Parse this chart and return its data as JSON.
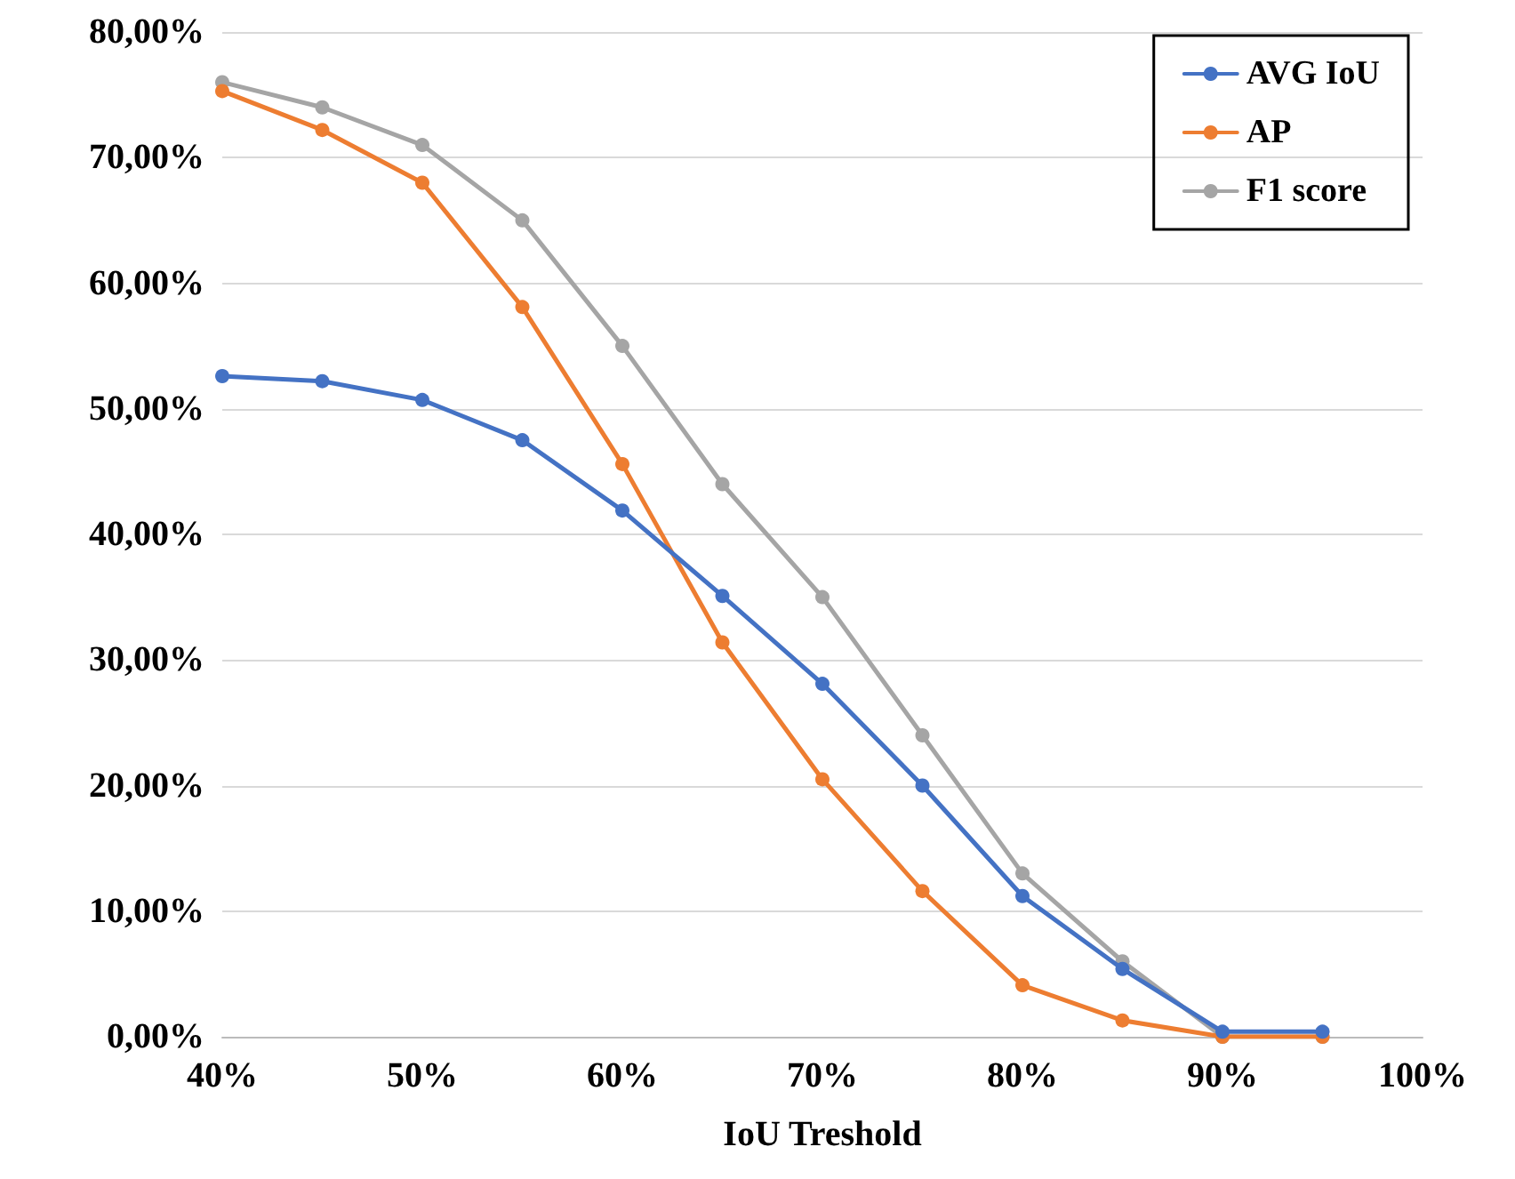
{
  "chart_data": {
    "type": "line",
    "xlabel": "IoU Treshold",
    "x": [
      40,
      45,
      50,
      55,
      60,
      65,
      70,
      75,
      80,
      85,
      90,
      95
    ],
    "series": [
      {
        "name": "AVG IoU",
        "color": "#4472c4",
        "values": [
          52.6,
          52.2,
          50.7,
          47.5,
          41.9,
          35.1,
          28.1,
          20.0,
          11.2,
          5.4,
          0.4,
          0.4
        ]
      },
      {
        "name": "AP",
        "color": "#ed7d31",
        "values": [
          75.3,
          72.2,
          68.0,
          58.1,
          45.6,
          31.4,
          20.5,
          11.6,
          4.1,
          1.3,
          0,
          0
        ]
      },
      {
        "name": "F1 score",
        "color": "#a5a5a5",
        "values": [
          76,
          74,
          71,
          65,
          55,
          44,
          35,
          24,
          13,
          6,
          0,
          0
        ]
      }
    ],
    "xlim": [
      40,
      100
    ],
    "xticks": [
      {
        "value": 40,
        "label": "40%"
      },
      {
        "value": 50,
        "label": "50%"
      },
      {
        "value": 60,
        "label": "60%"
      },
      {
        "value": 70,
        "label": "70%"
      },
      {
        "value": 80,
        "label": "80%"
      },
      {
        "value": 90,
        "label": "90%"
      },
      {
        "value": 100,
        "label": "100%"
      }
    ],
    "ylim": [
      0,
      80
    ],
    "yticks": [
      {
        "value": 0,
        "label": "0,00%"
      },
      {
        "value": 10,
        "label": "10,00%"
      },
      {
        "value": 20,
        "label": "20,00%"
      },
      {
        "value": 30,
        "label": "30,00%"
      },
      {
        "value": 40,
        "label": "40,00%"
      },
      {
        "value": 50,
        "label": "50,00%"
      },
      {
        "value": 60,
        "label": "60,00%"
      },
      {
        "value": 70,
        "label": "70,00%"
      },
      {
        "value": 80,
        "label": "80,00%"
      }
    ],
    "grid": "y",
    "legend": "top right",
    "marker": "circle",
    "line_style": "solid"
  }
}
